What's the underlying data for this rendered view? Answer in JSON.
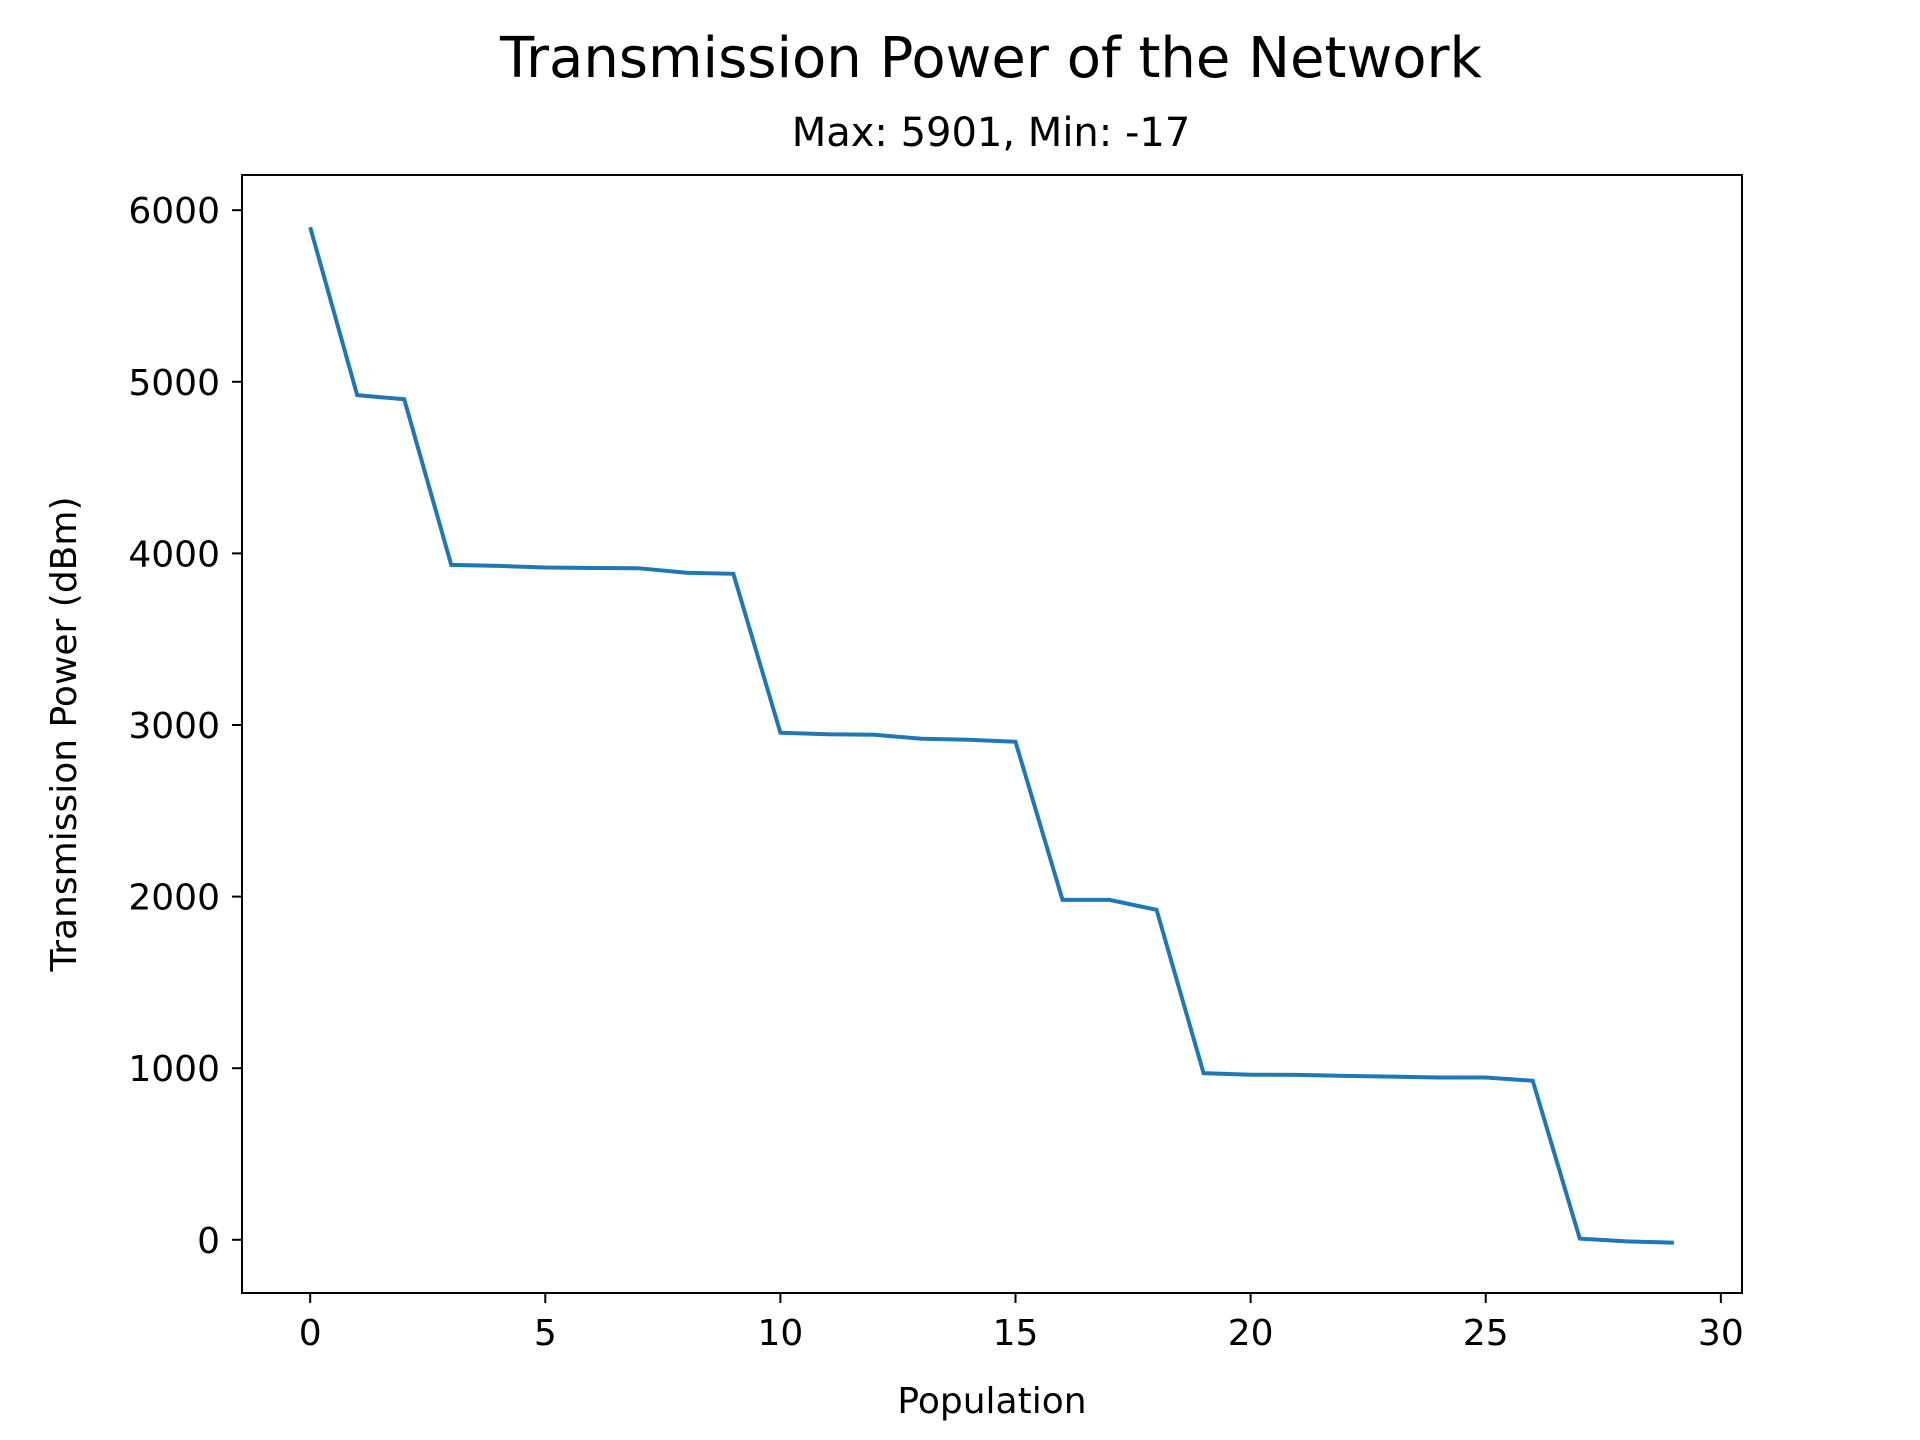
{
  "chart_data": {
    "type": "line",
    "title": "Transmission Power of the Network",
    "subtitle": "Max: 5901, Min: -17",
    "xlabel": "Population",
    "ylabel": "Transmission Power (dBm)",
    "xlim": [
      -1.45,
      30.45
    ],
    "ylim": [
      -310,
      6205
    ],
    "xticks": [
      0,
      5,
      10,
      15,
      20,
      25,
      30
    ],
    "yticks": [
      0,
      1000,
      2000,
      3000,
      4000,
      5000,
      6000
    ],
    "grid": false,
    "series": [
      {
        "color": "#1f77b4",
        "x": [
          0,
          1,
          2,
          3,
          4,
          5,
          6,
          7,
          8,
          9,
          10,
          11,
          12,
          13,
          14,
          15,
          16,
          17,
          18,
          19,
          20,
          21,
          22,
          23,
          24,
          25,
          26,
          27,
          28,
          29
        ],
        "y": [
          5901,
          4922,
          4898,
          3933,
          3927,
          3918,
          3915,
          3913,
          3887,
          3881,
          2955,
          2946,
          2943,
          2920,
          2914,
          2902,
          1981,
          1981,
          1923,
          971,
          962,
          961,
          955,
          951,
          946,
          946,
          927,
          7,
          -9,
          -17
        ]
      }
    ]
  }
}
